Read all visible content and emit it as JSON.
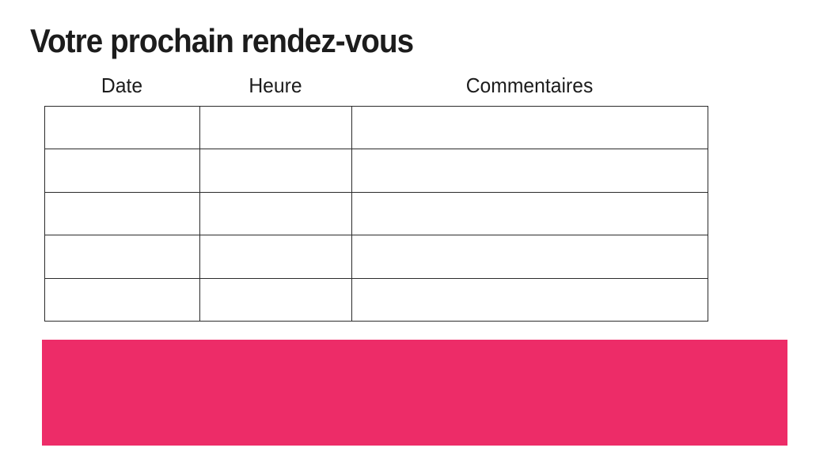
{
  "page_title": "Votre prochain rendez-vous",
  "table": {
    "headers": [
      {
        "id": "date",
        "label": "Date"
      },
      {
        "id": "heure",
        "label": "Heure"
      },
      {
        "id": "commentaires",
        "label": "Commentaires"
      }
    ],
    "rows": [
      [
        "",
        "",
        ""
      ],
      [
        "",
        "",
        ""
      ],
      [
        "",
        "",
        ""
      ],
      [
        "",
        "",
        ""
      ],
      [
        "",
        "",
        ""
      ]
    ]
  },
  "colors": {
    "accent_band": "#ED2C68",
    "table_border": "#2b2b2b",
    "text": "#1c1c1c"
  }
}
